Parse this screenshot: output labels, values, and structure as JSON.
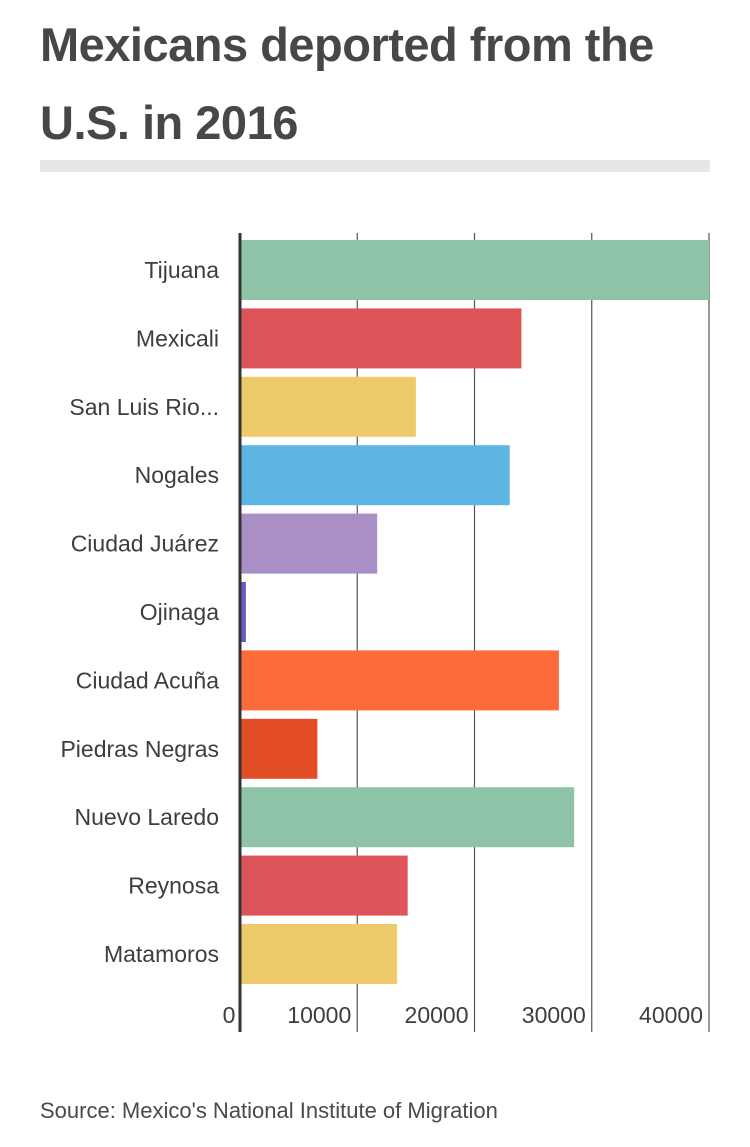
{
  "title": "Mexicans deported from the U.S. in 2016",
  "source": "Source: Mexico's National Institute of Migration",
  "colors": {
    "palette": [
      "#8fc3a8",
      "#dd5559",
      "#eecb6a",
      "#5db5e3",
      "#a98fc5",
      "#6a58c9",
      "#fd6b3a",
      "#e34e26"
    ],
    "axis": "#333333",
    "grid": "#555555",
    "rule": "#e7e7e7"
  },
  "chart_data": {
    "type": "bar",
    "orientation": "horizontal",
    "title": "Mexicans deported from the U.S. in 2016",
    "xlabel": "",
    "ylabel": "",
    "xlim": [
      0,
      40000
    ],
    "ticks": [
      "0",
      "10000",
      "20000",
      "30000",
      "40000"
    ],
    "grid": true,
    "legend": "none",
    "categories": [
      "Tijuana",
      "Mexicali",
      "San Luis Rio...",
      "Nogales",
      "Ciudad Juárez",
      "Ojinaga",
      "Ciudad Acuña",
      "Piedras Negras",
      "Nuevo Laredo",
      "Reynosa",
      "Matamoros"
    ],
    "values": [
      40000,
      24000,
      15000,
      23000,
      11700,
      500,
      27200,
      6600,
      28500,
      14300,
      13400
    ],
    "bar_colors": [
      "#8fc3a8",
      "#dd5559",
      "#eecb6a",
      "#5db5e3",
      "#a98fc5",
      "#6a58c9",
      "#fd6b3a",
      "#e34e26",
      "#8fc3a8",
      "#dd5559",
      "#eecb6a"
    ]
  }
}
